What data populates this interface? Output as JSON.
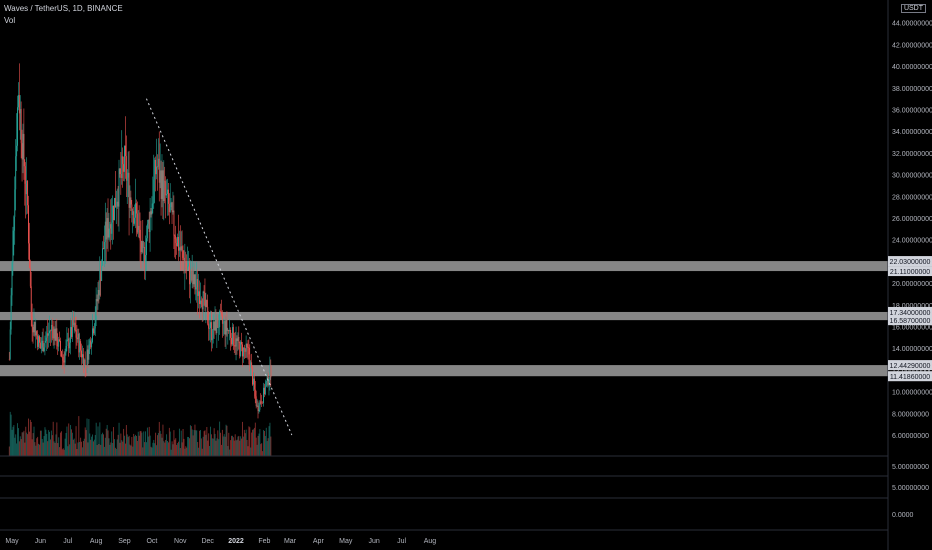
{
  "header": {
    "symbol_line": "Waves / TetherUS, 1D, BINANCE",
    "volume_label": "Vol",
    "unit": "USDT"
  },
  "colors": {
    "up": "#26a69a",
    "down": "#ef5350",
    "zone": "#9e9e9e",
    "trendline": "#d1d4dc",
    "axis_text": "#b2b5be",
    "label_box": "#d1d4dc"
  },
  "chart_data": {
    "type": "candlestick",
    "title": "Waves / TetherUS, 1D, BINANCE",
    "y_scale": "linear",
    "ylim": [
      6,
      46
    ],
    "y_ticks": [
      "46.00000000",
      "44.00000000",
      "42.00000000",
      "40.00000000",
      "38.00000000",
      "36.00000000",
      "34.00000000",
      "32.00000000",
      "30.00000000",
      "28.00000000",
      "26.00000000",
      "24.00000000",
      "22.00000000",
      "20.00000000",
      "18.00000000",
      "16.00000000",
      "14.00000000",
      "12.00000000",
      "10.00000000",
      "8.00000000",
      "6.00000000"
    ],
    "x_ticks": [
      "May",
      "Jun",
      "Jul",
      "Aug",
      "Sep",
      "Oct",
      "Nov",
      "Dec",
      "2022",
      "Feb",
      "Mar",
      "Apr",
      "May",
      "Jun",
      "Jul",
      "Aug"
    ],
    "horizontal_zones": [
      {
        "top": 22.03,
        "bottom": 21.11,
        "labels": [
          "22.03000000",
          "21.11000000"
        ]
      },
      {
        "top": 17.34,
        "bottom": 16.587,
        "labels": [
          "17.34000000",
          "16.58700000"
        ]
      },
      {
        "top": 12.4429,
        "bottom": 11.4186,
        "labels": [
          "12.44290000",
          "11.41860000"
        ]
      }
    ],
    "trendline": {
      "style": "dotted",
      "from": {
        "x": "2021-09-25",
        "y": 37.0
      },
      "to": {
        "x": "2022-03-03",
        "y": 6.0
      }
    },
    "price_path": [
      {
        "x": "2021-04-28",
        "y": 13
      },
      {
        "x": "2021-05-04",
        "y": 30
      },
      {
        "x": "2021-05-08",
        "y": 38
      },
      {
        "x": "2021-05-13",
        "y": 32
      },
      {
        "x": "2021-05-18",
        "y": 27
      },
      {
        "x": "2021-05-22",
        "y": 17
      },
      {
        "x": "2021-06-01",
        "y": 14
      },
      {
        "x": "2021-06-14",
        "y": 16
      },
      {
        "x": "2021-06-26",
        "y": 13
      },
      {
        "x": "2021-07-07",
        "y": 16
      },
      {
        "x": "2021-07-20",
        "y": 12.5
      },
      {
        "x": "2021-07-31",
        "y": 17
      },
      {
        "x": "2021-08-10",
        "y": 24
      },
      {
        "x": "2021-08-20",
        "y": 27
      },
      {
        "x": "2021-09-01",
        "y": 31
      },
      {
        "x": "2021-09-07",
        "y": 28
      },
      {
        "x": "2021-09-14",
        "y": 26
      },
      {
        "x": "2021-09-21",
        "y": 22
      },
      {
        "x": "2021-09-30",
        "y": 27
      },
      {
        "x": "2021-10-06",
        "y": 31
      },
      {
        "x": "2021-10-14",
        "y": 28.5
      },
      {
        "x": "2021-10-25",
        "y": 25
      },
      {
        "x": "2021-11-05",
        "y": 22
      },
      {
        "x": "2021-11-15",
        "y": 20
      },
      {
        "x": "2021-11-24",
        "y": 19
      },
      {
        "x": "2021-12-05",
        "y": 15.5
      },
      {
        "x": "2021-12-14",
        "y": 16.5
      },
      {
        "x": "2021-12-25",
        "y": 15.5
      },
      {
        "x": "2022-01-05",
        "y": 14
      },
      {
        "x": "2022-01-15",
        "y": 13.5
      },
      {
        "x": "2022-01-21",
        "y": 10
      },
      {
        "x": "2022-01-24",
        "y": 8.5
      },
      {
        "x": "2022-01-30",
        "y": 9.5
      },
      {
        "x": "2022-02-06",
        "y": 11.5
      },
      {
        "x": "2022-02-08",
        "y": 12
      }
    ],
    "volume_pane": {
      "y_ticks": [
        "5.00000000",
        "5.00000000",
        "0.0000"
      ]
    }
  }
}
